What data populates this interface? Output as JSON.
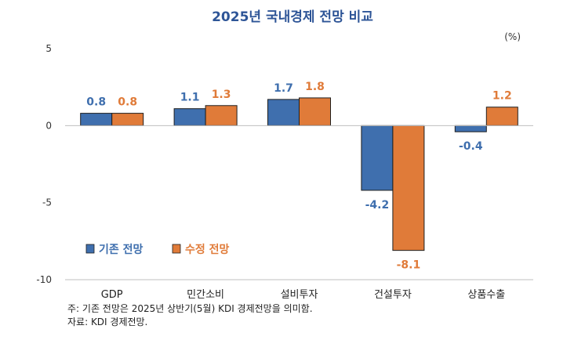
{
  "chart_data": {
    "type": "bar",
    "title": "2025년 국내경제 전망 비교",
    "unit": "(%)",
    "categories": [
      "GDP",
      "민간소비",
      "설비투자",
      "건설투자",
      "상품수출"
    ],
    "series": [
      {
        "name": "기존 전망",
        "color": "#3F6FAE",
        "values": [
          0.8,
          1.1,
          1.7,
          -4.2,
          -0.4
        ],
        "labels": [
          "0.8",
          "1.1",
          "1.7",
          "-4.2",
          "-0.4"
        ]
      },
      {
        "name": "수정 전망",
        "color": "#E07B39",
        "values": [
          0.8,
          1.3,
          1.8,
          -8.1,
          1.2
        ],
        "labels": [
          "0.8",
          "1.3",
          "1.8",
          "-8.1",
          "1.2"
        ]
      }
    ],
    "ylim": [
      -10,
      5
    ],
    "yticks": [
      5,
      0,
      -5,
      -10
    ],
    "ytick_labels": [
      "5",
      "0",
      "-5",
      "-10"
    ],
    "legend_position": "lower-left",
    "grid": false
  },
  "notes": {
    "note1": "주: 기존 전망은 2025년 상반기(5월) KDI 경제전망을 의미함.",
    "note2": "자료: KDI 경제전망."
  }
}
